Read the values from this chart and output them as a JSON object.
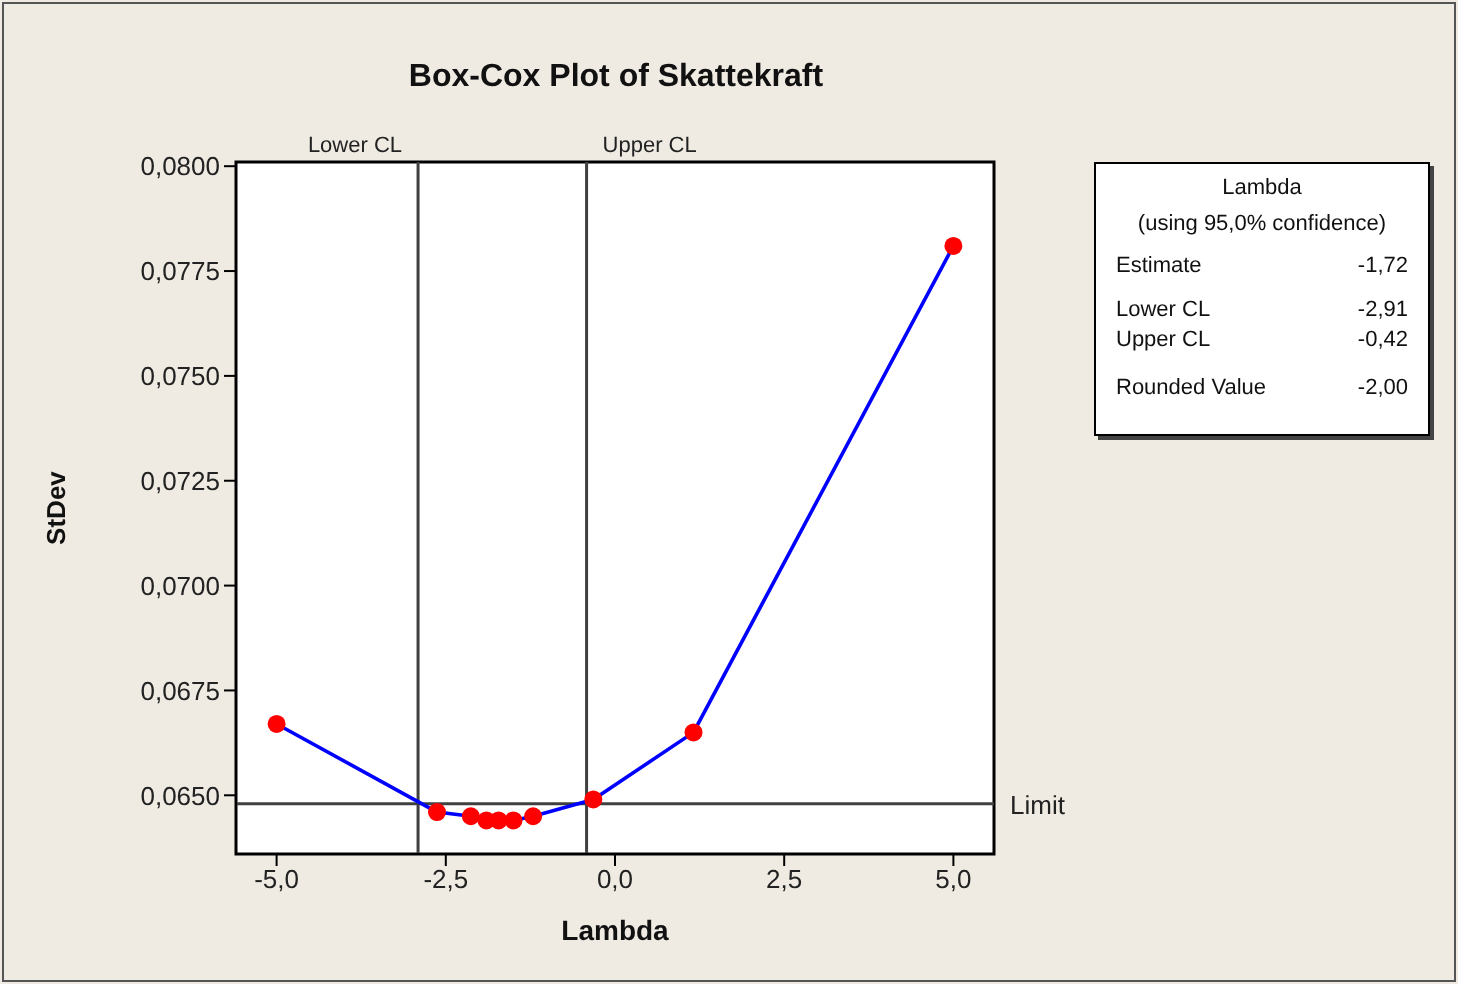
{
  "chart_data": {
    "type": "line",
    "title": "Box-Cox Plot of Skattekraft",
    "xlabel": "Lambda",
    "ylabel": "StDev",
    "x": [
      -5,
      -2.63,
      -2.13,
      -1.9,
      -1.72,
      -1.5,
      -1.21,
      -0.32,
      1.16,
      5
    ],
    "series": [
      {
        "color": "#0000ff",
        "colors": [
          "#ff0000",
          "#ff0000",
          "#ff0000",
          "#ff0000",
          "#ff0000",
          "#ff0000",
          "#ff0000",
          "#ff0000",
          "#ff0000",
          "#ff0000"
        ],
        "values": [
          0.0667,
          0.0646,
          0.0645,
          0.0644,
          0.0644,
          0.0644,
          0.0645,
          0.0649,
          0.0665,
          0.0781
        ]
      }
    ],
    "marker": "circle",
    "line_style": "solid",
    "legend": false,
    "xlim": [
      -5.6,
      5.6
    ],
    "xticks": [
      {
        "value": -5,
        "label": "-5,0"
      },
      {
        "value": -2.5,
        "label": "-2,5"
      },
      {
        "value": 0,
        "label": "0,0"
      },
      {
        "value": 2.5,
        "label": "2,5"
      },
      {
        "value": 5,
        "label": "5,0"
      }
    ],
    "ylim": [
      0.0636,
      0.0801
    ],
    "yticks": [
      {
        "value": 0.065,
        "label": "0,0650"
      },
      {
        "value": 0.0675,
        "label": "0,0675"
      },
      {
        "value": 0.07,
        "label": "0,0700"
      },
      {
        "value": 0.0725,
        "label": "0,0725"
      },
      {
        "value": 0.075,
        "label": "0,0750"
      },
      {
        "value": 0.0775,
        "label": "0,0775"
      },
      {
        "value": 0.08,
        "label": "0,0800"
      }
    ],
    "ref_lines": [
      {
        "axis": "x",
        "value": -2.91,
        "label": "Lower CL",
        "color": "#404040"
      },
      {
        "axis": "x",
        "value": -0.42,
        "label": "Upper CL",
        "color": "#404040"
      },
      {
        "axis": "y",
        "value": 0.0648,
        "label": "Limit",
        "color": "#404040"
      }
    ],
    "annotations": [
      "Lambda",
      "(using 95,0% confidence)",
      "Estimate",
      "-1,72",
      "Lower CL",
      "-2,91",
      "Upper CL",
      "-0,42",
      "Rounded Value",
      "-2,00"
    ]
  }
}
